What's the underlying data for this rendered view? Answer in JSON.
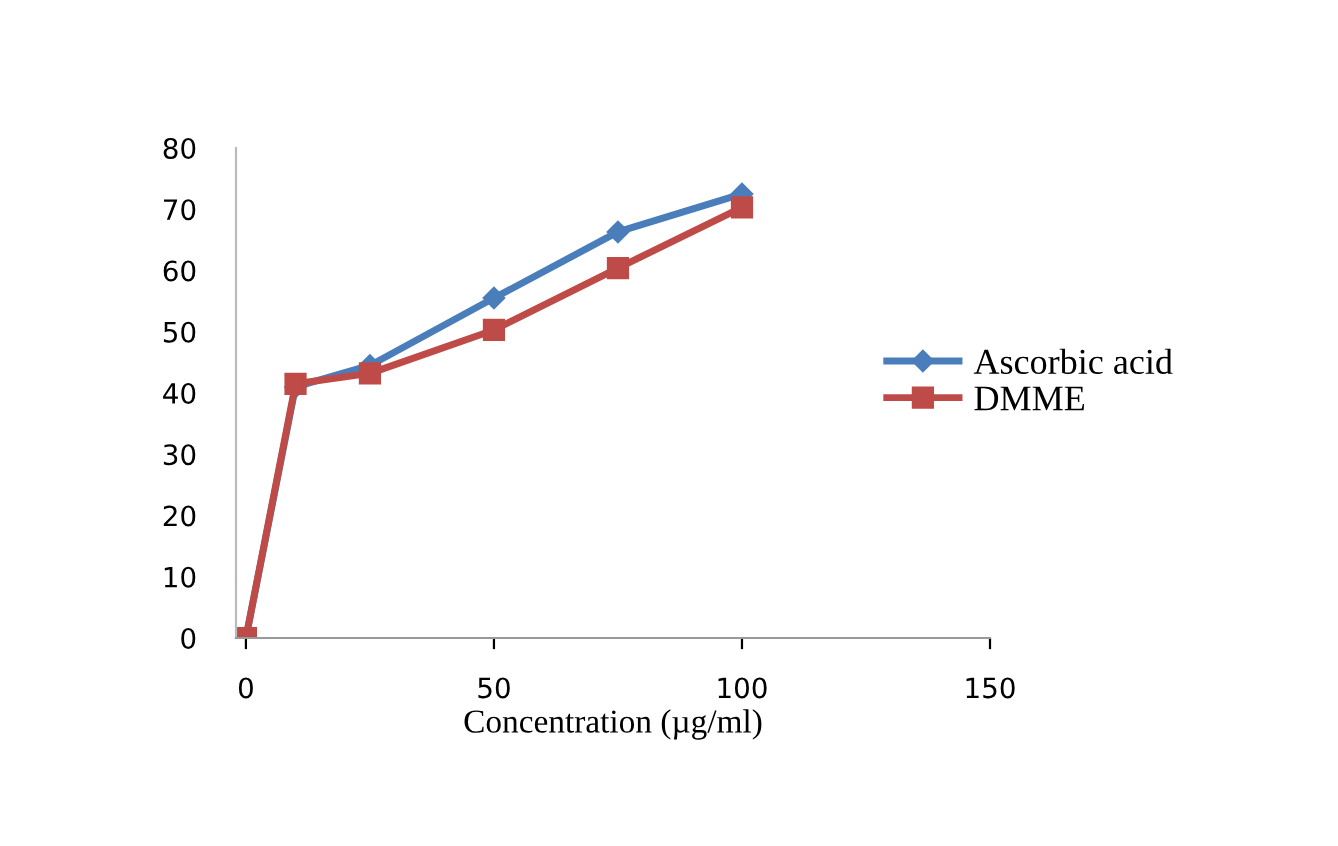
{
  "chart_data": {
    "type": "line",
    "xlabel": "Concentration (µg/ml)",
    "series": [
      {
        "name": "Ascorbic acid",
        "color": "#4a7ebb",
        "marker": "diamond",
        "x": [
          0,
          10,
          25,
          50,
          75,
          100
        ],
        "values": [
          0,
          41,
          44.5,
          55.5,
          66.3,
          72.5
        ]
      },
      {
        "name": "DMME",
        "color": "#be4b48",
        "marker": "square",
        "x": [
          0,
          10,
          25,
          50,
          75,
          100
        ],
        "values": [
          0,
          41.5,
          43.2,
          50.3,
          60.4,
          70.3
        ]
      }
    ],
    "xlim": [
      -2,
      150
    ],
    "xticks": [
      0,
      50,
      100,
      150
    ],
    "ylim": [
      0,
      80
    ],
    "yticks": [
      0,
      10,
      20,
      30,
      40,
      50,
      60,
      70,
      80
    ],
    "grid": false,
    "legend": "right"
  }
}
